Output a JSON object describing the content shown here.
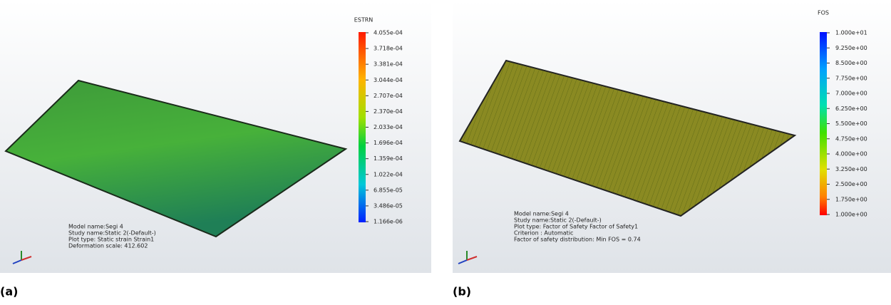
{
  "panels": [
    {
      "legend_title": "ESTRN",
      "legend_labels": [
        "4.055e-04",
        "3.718e-04",
        "3.381e-04",
        "3.044e-04",
        "2.707e-04",
        "2.370e-04",
        "2.033e-04",
        "1.696e-04",
        "1.359e-04",
        "1.022e-04",
        "6.855e-05",
        "3.486e-05",
        "1.166e-06"
      ],
      "info": [
        "Model name:Segi 4",
        "Study name:Static 2(-Default-)",
        "Plot type: Static strain Strain1",
        "Deformation scale: 412.602"
      ],
      "caption": "(a)"
    },
    {
      "legend_title": "FOS",
      "legend_labels": [
        "1.000e+01",
        "9.250e+00",
        "8.500e+00",
        "7.750e+00",
        "7.000e+00",
        "6.250e+00",
        "5.500e+00",
        "4.750e+00",
        "4.000e+00",
        "3.250e+00",
        "2.500e+00",
        "1.750e+00",
        "1.000e+00"
      ],
      "info": [
        "Model name:Segi 4",
        "Study name:Static 2(-Default-)",
        "Plot type: Factor of Safety Factor of Safety1",
        "Criterion : Automatic",
        "Factor of safety distribution: Min FOS = 0.74"
      ],
      "caption": "(b)"
    }
  ]
}
